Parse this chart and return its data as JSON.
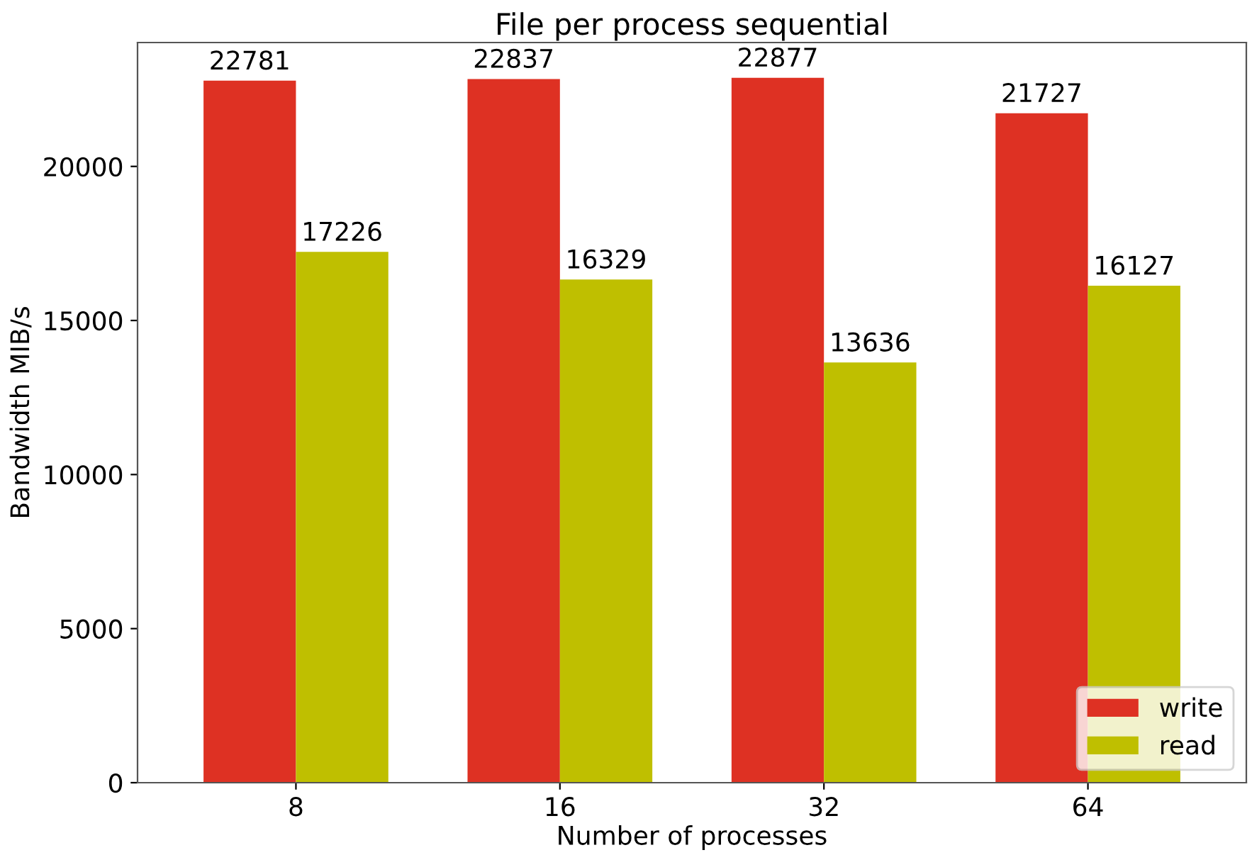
{
  "chart_data": {
    "type": "bar",
    "title": "File per process sequential",
    "xlabel": "Number of processes",
    "ylabel": "Bandwidth MIB/s",
    "categories": [
      "8",
      "16",
      "32",
      "64"
    ],
    "series": [
      {
        "name": "write",
        "color": "#de3123",
        "values": [
          22781,
          22837,
          22877,
          21727
        ]
      },
      {
        "name": "read",
        "color": "#bfbf00",
        "values": [
          17226,
          16329,
          13636,
          16127
        ]
      }
    ],
    "ylim": [
      0,
      24020
    ],
    "yticks": [
      0,
      5000,
      10000,
      15000,
      20000
    ],
    "data_labels": true,
    "grid": false,
    "legend": "bottom right"
  }
}
